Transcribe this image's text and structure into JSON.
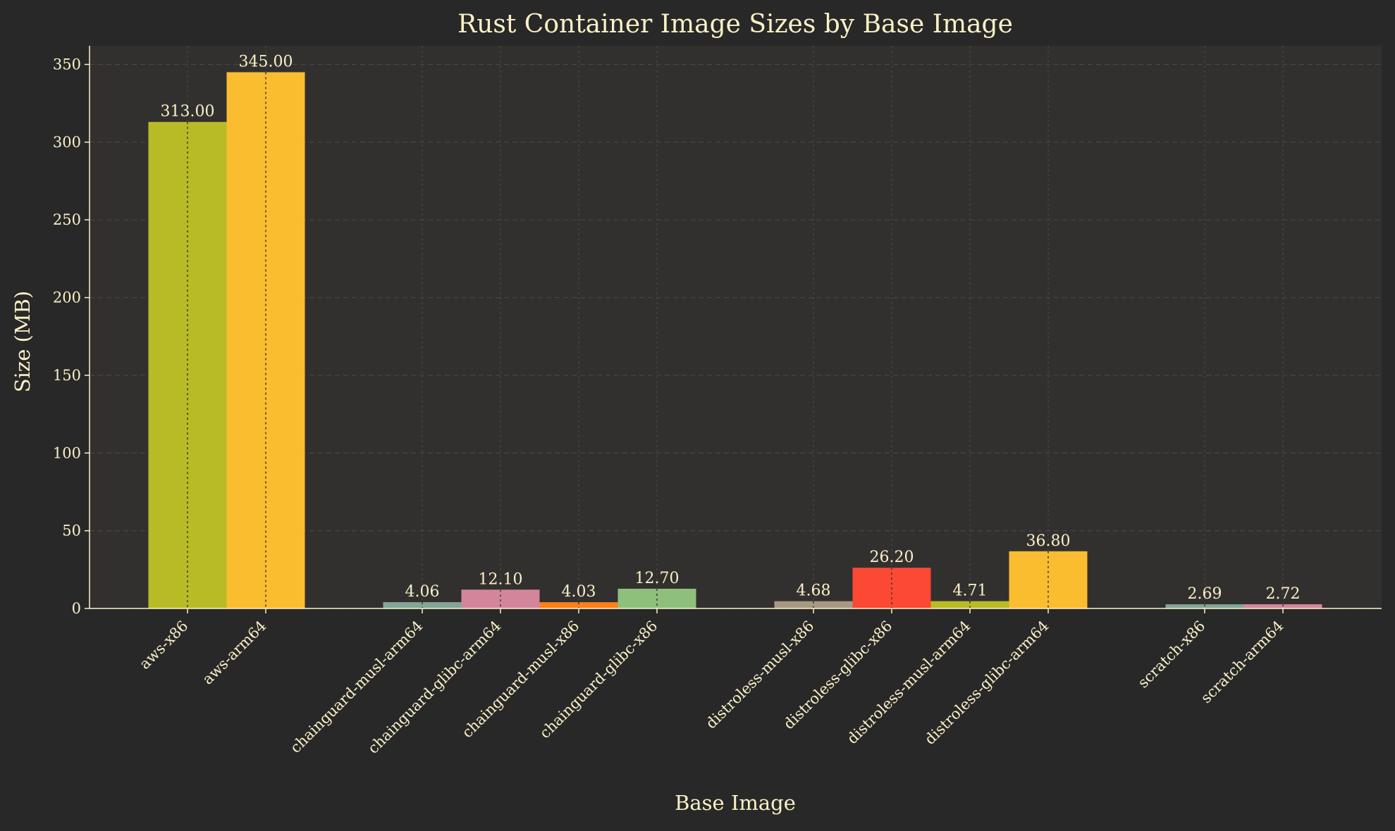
{
  "chart_data": {
    "type": "bar",
    "title": "Rust Container Image Sizes by Base Image",
    "xlabel": "Base Image",
    "ylabel": "Size (MB)",
    "ylim": [
      0,
      362
    ],
    "yticks": [
      0,
      50,
      100,
      150,
      200,
      250,
      300,
      350
    ],
    "grid": true,
    "background": "#282828",
    "plot_background": "#32302f",
    "text_color": "#fbf1c7",
    "bars": [
      {
        "category": "aws-x86",
        "value": 313.0,
        "label": "313.00",
        "color": "#b8bb26",
        "group": 0
      },
      {
        "category": "aws-arm64",
        "value": 345.0,
        "label": "345.00",
        "color": "#fabd2f",
        "group": 0
      },
      {
        "category": "chainguard-musl-arm64",
        "value": 4.06,
        "label": "4.06",
        "color": "#83a598",
        "group": 1
      },
      {
        "category": "chainguard-glibc-arm64",
        "value": 12.1,
        "label": "12.10",
        "color": "#d3869b",
        "group": 1
      },
      {
        "category": "chainguard-musl-x86",
        "value": 4.03,
        "label": "4.03",
        "color": "#fe8019",
        "group": 1
      },
      {
        "category": "chainguard-glibc-x86",
        "value": 12.7,
        "label": "12.70",
        "color": "#8ec07c",
        "group": 1
      },
      {
        "category": "distroless-musl-x86",
        "value": 4.68,
        "label": "4.68",
        "color": "#a89984",
        "group": 2
      },
      {
        "category": "distroless-glibc-x86",
        "value": 26.2,
        "label": "26.20",
        "color": "#fb4934",
        "group": 2
      },
      {
        "category": "distroless-musl-arm64",
        "value": 4.71,
        "label": "4.71",
        "color": "#b8bb26",
        "group": 2
      },
      {
        "category": "distroless-glibc-arm64",
        "value": 36.8,
        "label": "36.80",
        "color": "#fabd2f",
        "group": 2
      },
      {
        "category": "scratch-x86",
        "value": 2.69,
        "label": "2.69",
        "color": "#83a598",
        "group": 3
      },
      {
        "category": "scratch-arm64",
        "value": 2.72,
        "label": "2.72",
        "color": "#d3869b",
        "group": 3
      }
    ]
  }
}
